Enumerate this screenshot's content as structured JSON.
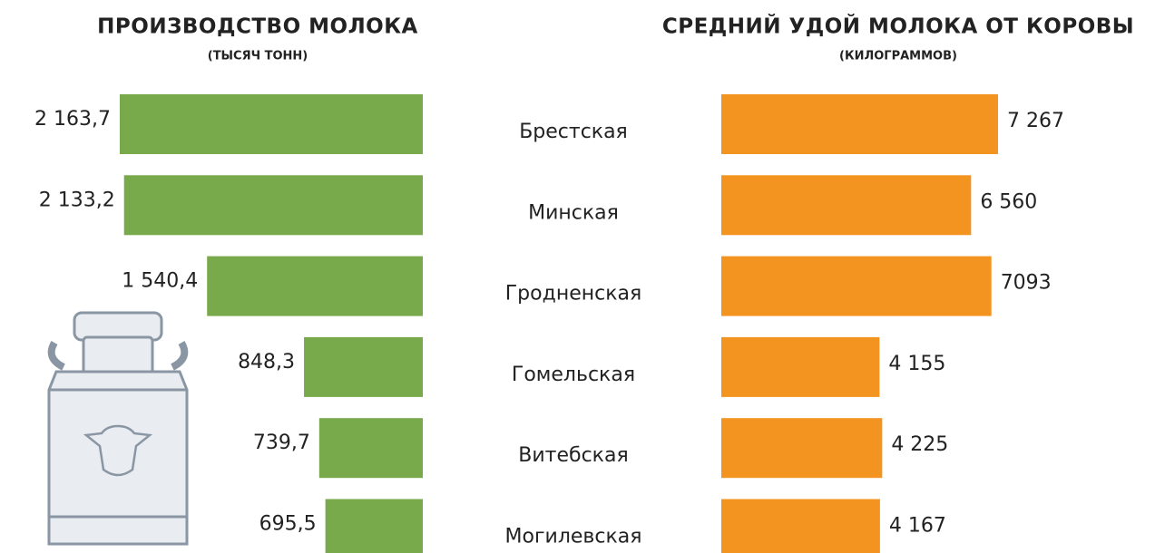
{
  "chart_data": [
    {
      "type": "bar",
      "title": "ПРОИЗВОДСТВО МОЛОКА",
      "subtitle": "(ТЫСЯЧ ТОНН)",
      "categories": [
        "Брестская",
        "Минская",
        "Гродненская",
        "Гомельская",
        "Витебская",
        "Могилевская"
      ],
      "values": [
        2163.7,
        2133.2,
        1540.4,
        848.3,
        739.7,
        695.5
      ],
      "value_labels": [
        "2 163,7",
        "2 133,2",
        "1 540,4",
        "848,3",
        "739,7",
        "695,5"
      ],
      "color": "#78a94a"
    },
    {
      "type": "bar",
      "title": "СРЕДНИЙ УДОЙ МОЛОКА ОТ КОРОВЫ",
      "subtitle": "(КИЛОГРАММОВ)",
      "values": [
        7267,
        6560,
        7093,
        4155,
        4225,
        4167
      ],
      "value_labels": [
        "7 267",
        "6 560",
        "7093",
        "4 155",
        "4 225",
        "4 167"
      ],
      "color": "#f39420"
    }
  ]
}
